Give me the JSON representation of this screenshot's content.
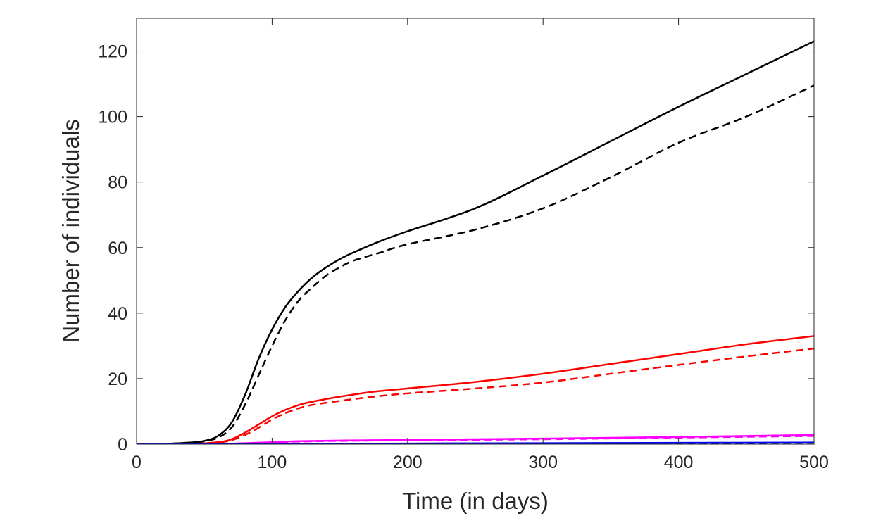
{
  "chart_data": {
    "type": "line",
    "title": "",
    "xlabel": "Time (in days)",
    "ylabel": "Number of individuals",
    "xlim": [
      0,
      500
    ],
    "ylim": [
      0,
      130
    ],
    "xticks": [
      0,
      100,
      200,
      300,
      400,
      500
    ],
    "yticks": [
      0,
      20,
      40,
      60,
      80,
      100,
      120
    ],
    "grid": false,
    "legend": "none",
    "series": [
      {
        "color": "#000000",
        "style": "solid",
        "points": [
          [
            0,
            0
          ],
          [
            20,
            0.1
          ],
          [
            40,
            0.5
          ],
          [
            50,
            1
          ],
          [
            60,
            2.5
          ],
          [
            70,
            6.5
          ],
          [
            80,
            15
          ],
          [
            90,
            26
          ],
          [
            100,
            35
          ],
          [
            110,
            42
          ],
          [
            120,
            47
          ],
          [
            130,
            51
          ],
          [
            140,
            54
          ],
          [
            150,
            56.5
          ],
          [
            160,
            58.5
          ],
          [
            180,
            62
          ],
          [
            200,
            65
          ],
          [
            250,
            72
          ],
          [
            300,
            82
          ],
          [
            350,
            92.5
          ],
          [
            400,
            103
          ],
          [
            450,
            113
          ],
          [
            500,
            123
          ]
        ]
      },
      {
        "color": "#000000",
        "style": "dashed",
        "points": [
          [
            0,
            0
          ],
          [
            20,
            0.1
          ],
          [
            40,
            0.4
          ],
          [
            50,
            0.9
          ],
          [
            60,
            2
          ],
          [
            70,
            5
          ],
          [
            80,
            12
          ],
          [
            90,
            21
          ],
          [
            100,
            30
          ],
          [
            110,
            38
          ],
          [
            120,
            44
          ],
          [
            130,
            48
          ],
          [
            140,
            51.5
          ],
          [
            150,
            54
          ],
          [
            160,
            56
          ],
          [
            180,
            58.5
          ],
          [
            200,
            61
          ],
          [
            250,
            65.5
          ],
          [
            300,
            72
          ],
          [
            350,
            81.5
          ],
          [
            400,
            92
          ],
          [
            450,
            100
          ],
          [
            500,
            109.5
          ]
        ]
      },
      {
        "color": "#ff0000",
        "style": "solid",
        "points": [
          [
            0,
            0
          ],
          [
            40,
            0.1
          ],
          [
            60,
            0.6
          ],
          [
            70,
            1.5
          ],
          [
            80,
            3.5
          ],
          [
            90,
            6
          ],
          [
            100,
            8.5
          ],
          [
            110,
            10.5
          ],
          [
            120,
            12
          ],
          [
            130,
            13
          ],
          [
            150,
            14.5
          ],
          [
            175,
            16
          ],
          [
            200,
            17
          ],
          [
            250,
            19
          ],
          [
            300,
            21.5
          ],
          [
            350,
            24.5
          ],
          [
            400,
            27.5
          ],
          [
            450,
            30.5
          ],
          [
            500,
            33
          ]
        ]
      },
      {
        "color": "#ff0000",
        "style": "dashed",
        "points": [
          [
            0,
            0
          ],
          [
            40,
            0.1
          ],
          [
            60,
            0.5
          ],
          [
            70,
            1.2
          ],
          [
            80,
            2.8
          ],
          [
            90,
            5
          ],
          [
            100,
            7.5
          ],
          [
            110,
            9.5
          ],
          [
            120,
            11
          ],
          [
            130,
            12
          ],
          [
            150,
            13.2
          ],
          [
            175,
            14.5
          ],
          [
            200,
            15.5
          ],
          [
            250,
            17
          ],
          [
            300,
            18.8
          ],
          [
            350,
            21.5
          ],
          [
            400,
            24.2
          ],
          [
            450,
            26.8
          ],
          [
            500,
            29.2
          ]
        ]
      },
      {
        "color": "#ff00ff",
        "style": "solid",
        "points": [
          [
            0,
            0
          ],
          [
            60,
            0.1
          ],
          [
            80,
            0.3
          ],
          [
            100,
            0.6
          ],
          [
            120,
            0.9
          ],
          [
            150,
            1.1
          ],
          [
            200,
            1.3
          ],
          [
            300,
            1.7
          ],
          [
            400,
            2.2
          ],
          [
            500,
            2.8
          ]
        ]
      },
      {
        "color": "#ff00ff",
        "style": "dashed",
        "points": [
          [
            0,
            0
          ],
          [
            60,
            0.1
          ],
          [
            80,
            0.2
          ],
          [
            100,
            0.5
          ],
          [
            120,
            0.8
          ],
          [
            150,
            1.0
          ],
          [
            200,
            1.2
          ],
          [
            300,
            1.5
          ],
          [
            400,
            2.0
          ],
          [
            500,
            2.5
          ]
        ]
      },
      {
        "color": "#0000ff",
        "style": "solid",
        "points": [
          [
            0,
            0
          ],
          [
            100,
            0.1
          ],
          [
            200,
            0.2
          ],
          [
            300,
            0.3
          ],
          [
            400,
            0.4
          ],
          [
            500,
            0.5
          ]
        ]
      },
      {
        "color": "#0000ff",
        "style": "dashed",
        "points": [
          [
            0,
            0
          ],
          [
            100,
            0.08
          ],
          [
            200,
            0.15
          ],
          [
            300,
            0.25
          ],
          [
            400,
            0.33
          ],
          [
            500,
            0.42
          ]
        ]
      }
    ]
  }
}
